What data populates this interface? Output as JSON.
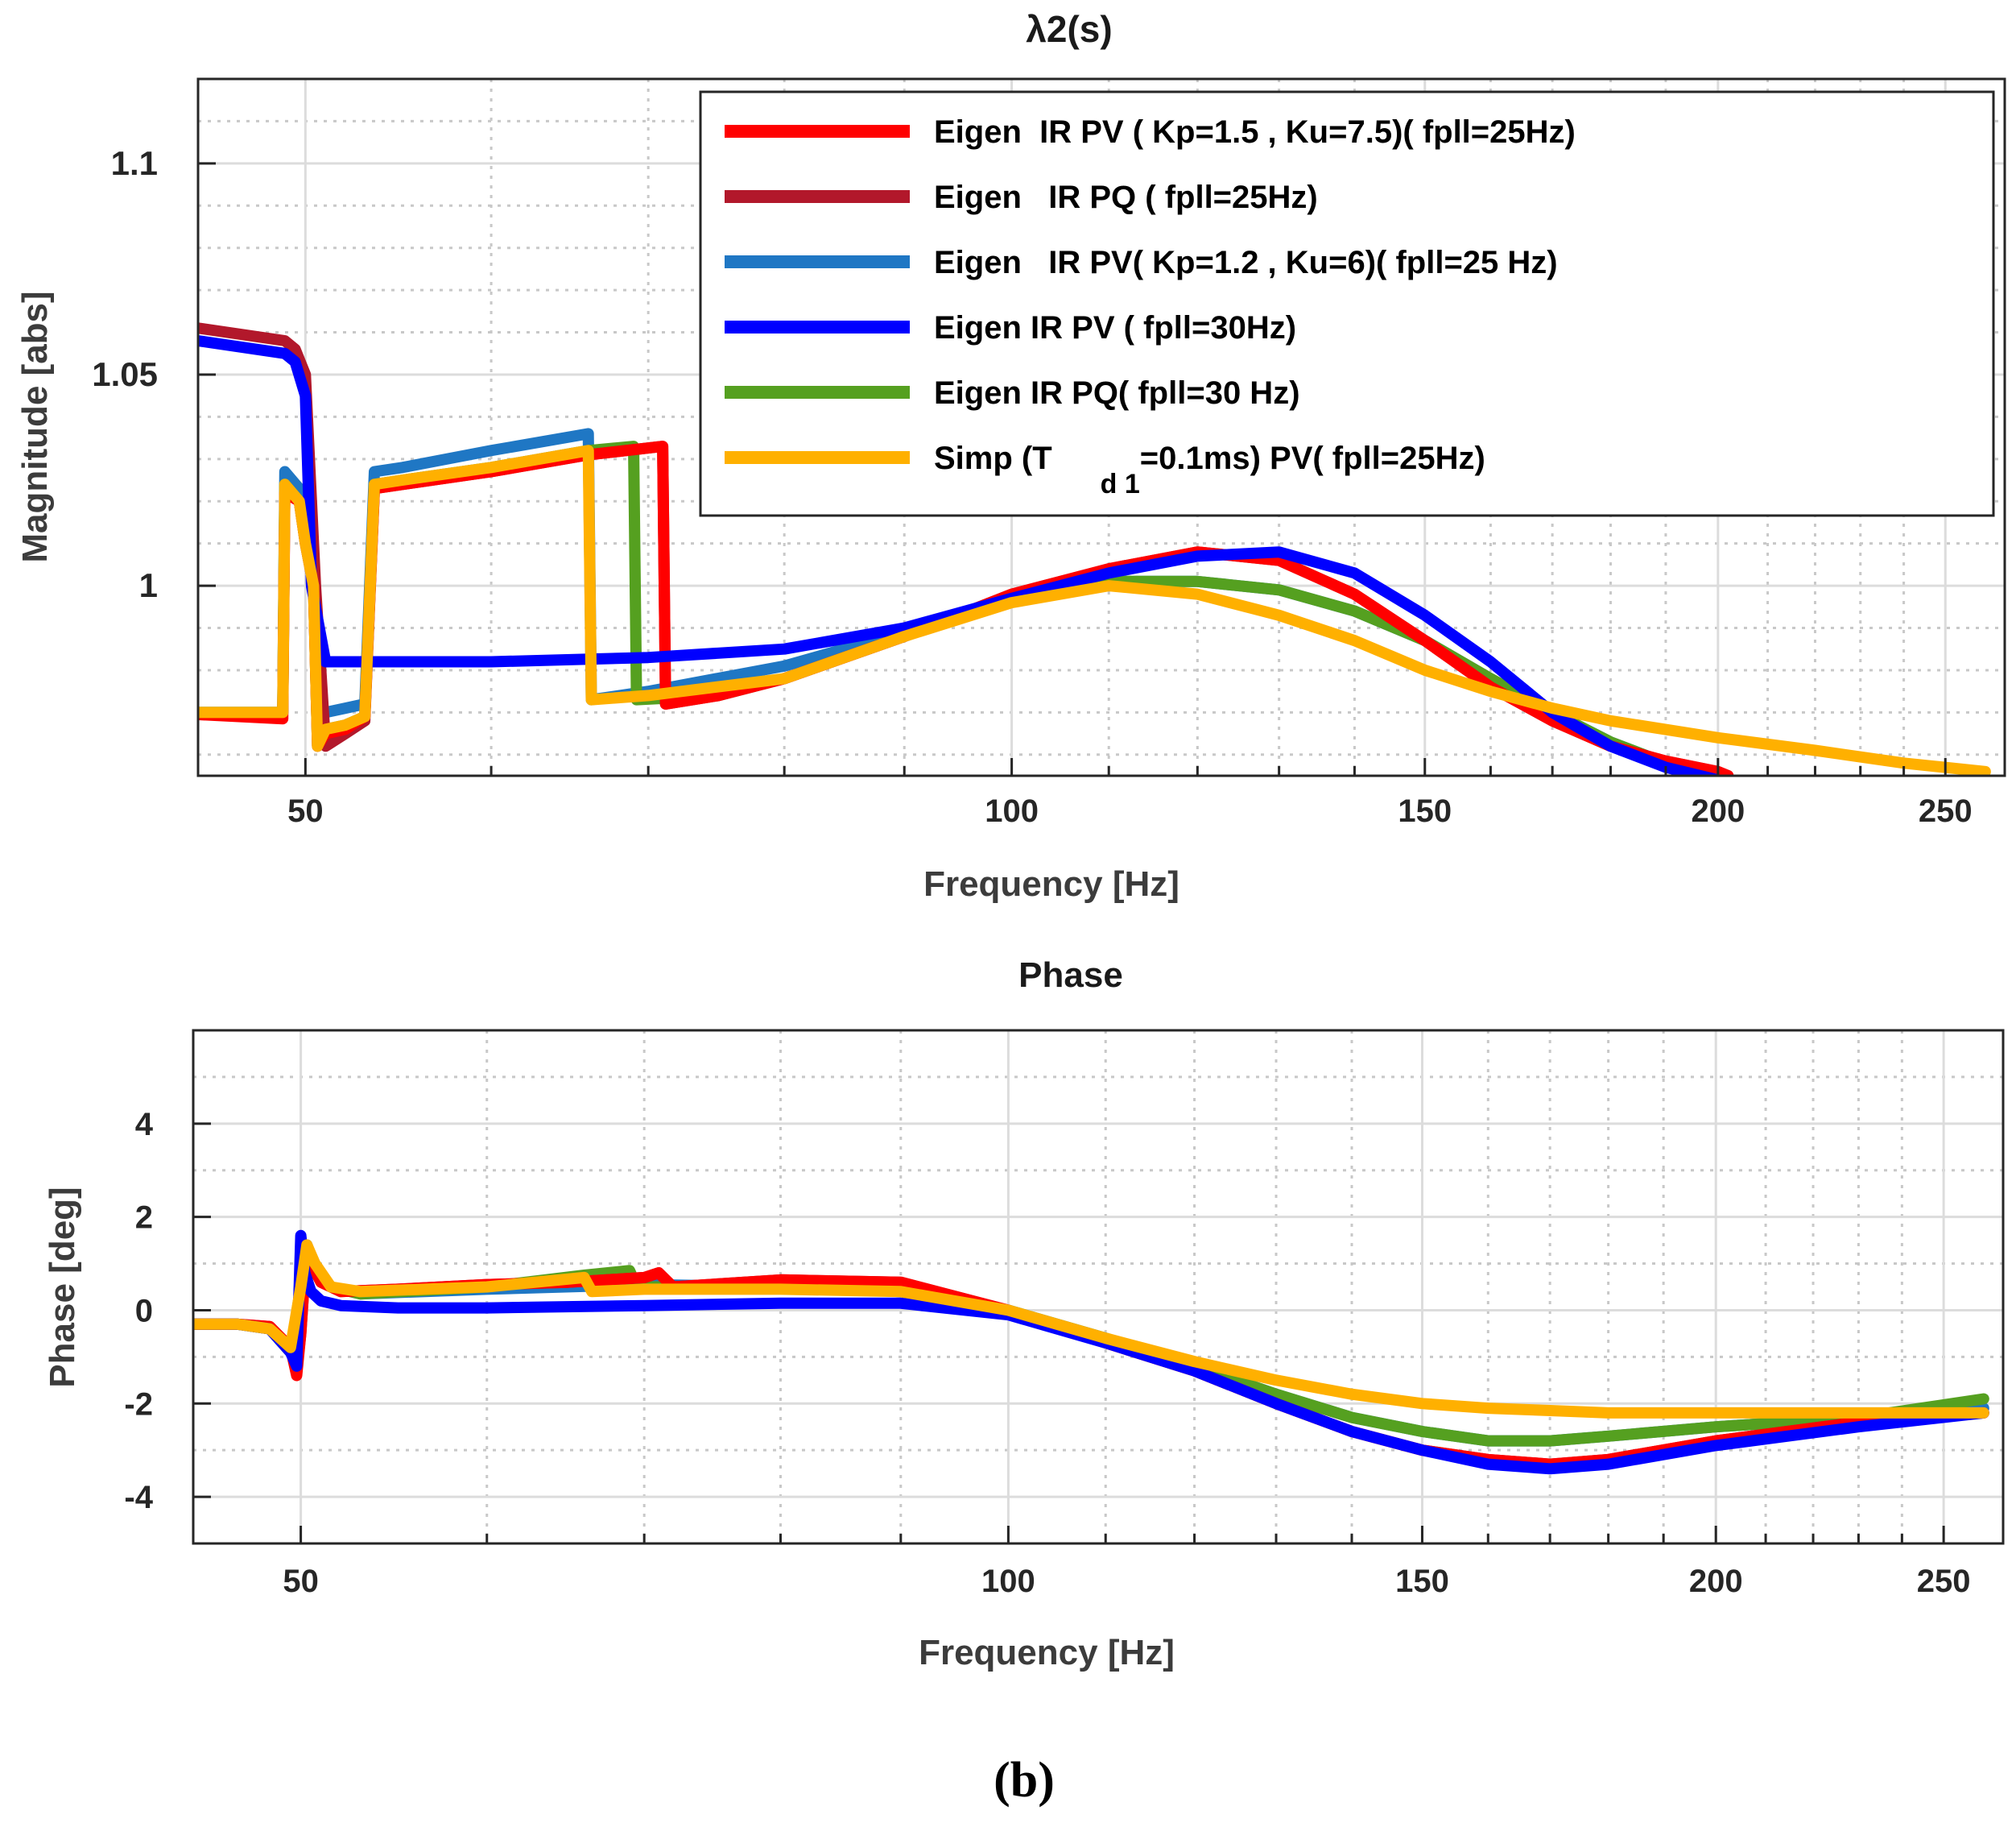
{
  "figure_caption": "(b)",
  "chart_data": [
    {
      "type": "line",
      "title": "λ2(s)",
      "xlabel": "Frequency [Hz]",
      "ylabel": "Magnitude [abs]",
      "xscale": "log",
      "xlim": [
        45,
        265
      ],
      "ylim": [
        0.955,
        1.12
      ],
      "xticks": [
        50,
        100,
        150,
        200,
        250
      ],
      "xtick_labels": [
        "50",
        "100",
        "150",
        "200",
        "250"
      ],
      "yticks": [
        1.0,
        1.05,
        1.1
      ],
      "ytick_labels": [
        "1",
        "1.05",
        "1.1"
      ],
      "grid": true,
      "legend_position": "top-right",
      "series": [
        {
          "name": "Eigen IR PV ( Kp=1.5 , Ku=7.5)( fpll=25Hz)",
          "color": "#ff0000",
          "x": [
            45,
            48.9,
            49,
            49.7,
            50,
            50.4,
            50.6,
            51,
            52,
            53,
            53.5,
            55,
            60,
            66,
            71,
            71.2,
            75,
            80,
            90,
            100,
            110,
            120,
            130,
            140,
            150,
            160,
            170,
            180,
            190,
            200,
            202
          ],
          "y": [
            0.9695,
            0.9685,
            1.022,
            1.02,
            1.01,
            1.0,
            0.962,
            0.965,
            0.966,
            0.969,
            1.023,
            1.024,
            1.027,
            1.031,
            1.033,
            0.972,
            0.974,
            0.978,
            0.988,
            0.998,
            1.004,
            1.008,
            1.006,
            0.998,
            0.987,
            0.976,
            0.968,
            0.962,
            0.9585,
            0.956,
            0.955
          ]
        },
        {
          "name": "Eigen IR PQ ( fpll=25Hz)",
          "color": "#b2182b",
          "x": [
            45,
            49,
            49.5,
            50,
            50.5,
            51,
            52,
            53,
            53.5,
            55,
            60,
            66,
            71,
            71.2,
            75,
            80,
            90,
            100,
            110,
            120,
            130,
            140,
            150,
            160,
            170,
            180,
            190,
            200,
            202
          ],
          "y": [
            1.061,
            1.058,
            1.056,
            1.05,
            1.0,
            0.962,
            0.965,
            0.968,
            1.023,
            1.024,
            1.027,
            1.031,
            1.033,
            0.972,
            0.974,
            0.978,
            0.988,
            0.998,
            1.004,
            1.008,
            1.006,
            0.998,
            0.987,
            0.976,
            0.968,
            0.962,
            0.9585,
            0.956,
            0.955
          ]
        },
        {
          "name": "Eigen IR PV( Kp=1.2 , Ku=6)( fpll=25 Hz)",
          "color": "#1f77c4",
          "x": [
            45,
            48.9,
            49,
            49.7,
            50,
            50.4,
            50.6,
            51,
            52,
            53,
            53.5,
            55,
            60,
            66,
            66.2,
            70,
            80,
            90,
            100,
            110,
            120,
            130,
            140,
            150,
            160,
            170,
            180,
            190,
            200
          ],
          "y": [
            0.97,
            0.97,
            1.027,
            1.023,
            1.012,
            1.0,
            0.972,
            0.97,
            0.971,
            0.972,
            1.027,
            1.028,
            1.032,
            1.036,
            0.973,
            0.975,
            0.981,
            0.989,
            0.997,
            1.001,
            1.001,
            0.999,
            0.994,
            0.987,
            0.978,
            0.97,
            0.963,
            0.958,
            0.955
          ]
        },
        {
          "name": "Eigen IR PV ( fpll=30Hz)",
          "color": "#0000ff",
          "x": [
            45,
            49,
            49.5,
            50,
            50.3,
            51,
            55,
            60,
            70,
            80,
            90,
            100,
            110,
            120,
            130,
            140,
            150,
            160,
            170,
            180,
            190,
            200
          ],
          "y": [
            1.058,
            1.055,
            1.053,
            1.045,
            1.0,
            0.982,
            0.982,
            0.982,
            0.983,
            0.985,
            0.99,
            0.997,
            1.003,
            1.007,
            1.008,
            1.003,
            0.993,
            0.982,
            0.97,
            0.962,
            0.957,
            0.954
          ]
        },
        {
          "name": "Eigen IR PQ( fpll=30 Hz)",
          "color": "#55a020",
          "x": [
            45,
            48.9,
            49,
            49.7,
            50,
            50.4,
            50.6,
            51,
            52,
            53,
            53.5,
            55,
            60,
            66,
            69,
            69.2,
            75,
            80,
            90,
            100,
            110,
            120,
            130,
            140,
            150,
            160,
            170,
            180,
            190,
            200
          ],
          "y": [
            0.97,
            0.97,
            1.024,
            1.02,
            1.01,
            1.0,
            0.962,
            0.966,
            0.967,
            0.969,
            1.024,
            1.025,
            1.028,
            1.032,
            1.033,
            0.973,
            0.974,
            0.978,
            0.988,
            0.997,
            1.001,
            1.001,
            0.999,
            0.994,
            0.987,
            0.978,
            0.97,
            0.963,
            0.958,
            0.955
          ]
        },
        {
          "name": "Simp (T d 1=0.1ms) PV( fpll=25Hz)",
          "color": "#ffb000",
          "x": [
            45,
            48.9,
            49,
            49.7,
            50,
            50.4,
            50.6,
            51,
            52,
            53,
            53.5,
            55,
            60,
            66,
            66.2,
            70,
            80,
            90,
            100,
            110,
            120,
            130,
            140,
            150,
            160,
            170,
            180,
            200,
            220,
            240,
            260
          ],
          "y": [
            0.97,
            0.97,
            1.024,
            1.02,
            1.01,
            1.0,
            0.962,
            0.966,
            0.967,
            0.969,
            1.024,
            1.025,
            1.028,
            1.032,
            0.973,
            0.974,
            0.978,
            0.988,
            0.996,
            1.0,
            0.998,
            0.993,
            0.987,
            0.98,
            0.975,
            0.971,
            0.968,
            0.964,
            0.961,
            0.958,
            0.956
          ]
        }
      ],
      "legend_entries": [
        {
          "label": "Eigen  IR PV ( Kp=1.5 , Ku=7.5)( fpll=25Hz)",
          "color": "#ff0000"
        },
        {
          "label": "Eigen   IR PQ ( fpll=25Hz)",
          "color": "#b2182b"
        },
        {
          "label": "Eigen   IR PV( Kp=1.2 , Ku=6)( fpll=25 Hz)",
          "color": "#1f77c4"
        },
        {
          "label": "Eigen IR PV ( fpll=30Hz)",
          "color": "#0000ff"
        },
        {
          "label": "Eigen IR PQ( fpll=30 Hz)",
          "color": "#55a020"
        },
        {
          "label": "Simp (T",
          "subscript": "d 1",
          "suffix": "=0.1ms) PV( fpll=25Hz)",
          "color": "#ffb000"
        }
      ]
    },
    {
      "type": "line",
      "title": "Phase",
      "xlabel": "Frequency [Hz]",
      "ylabel": "Phase [deg]",
      "xscale": "log",
      "xlim": [
        45,
        265
      ],
      "ylim": [
        -5,
        6
      ],
      "xticks": [
        50,
        100,
        150,
        200,
        250
      ],
      "xtick_labels": [
        "50",
        "100",
        "150",
        "200",
        "250"
      ],
      "yticks": [
        -4,
        -2,
        0,
        2,
        4
      ],
      "ytick_labels": [
        "-4",
        "-2",
        "0",
        "2",
        "4"
      ],
      "grid": true,
      "series": [
        {
          "name": "Eigen IR PV ( Kp=1.5 , Ku=7.5)( fpll=25Hz)",
          "color": "#ff0000",
          "x": [
            45,
            47,
            48.5,
            49.5,
            49.8,
            50,
            50.2,
            50.5,
            51,
            52,
            55,
            60,
            65,
            70,
            71,
            72,
            80,
            90,
            100,
            110,
            120,
            130,
            140,
            150,
            160,
            170,
            180,
            200,
            230,
            260
          ],
          "y": [
            -0.3,
            -0.3,
            -0.35,
            -0.8,
            -1.4,
            -0.5,
            0.8,
            1.0,
            0.6,
            0.4,
            0.45,
            0.55,
            0.6,
            0.7,
            0.8,
            0.5,
            0.65,
            0.6,
            0.0,
            -0.7,
            -1.3,
            -2.0,
            -2.6,
            -3.0,
            -3.2,
            -3.3,
            -3.2,
            -2.8,
            -2.4,
            -2.2
          ]
        },
        {
          "name": "Eigen IR PQ ( fpll=25Hz)",
          "color": "#b2182b",
          "x": [
            45,
            47,
            48.5,
            49.5,
            49.8,
            50,
            50.2,
            50.5,
            51,
            52,
            55,
            60,
            65,
            70,
            71,
            72,
            80,
            90,
            100,
            110,
            120,
            130,
            140,
            150,
            160,
            170,
            180,
            200,
            230,
            260
          ],
          "y": [
            -0.3,
            -0.3,
            -0.35,
            -0.8,
            -1.3,
            -0.5,
            0.8,
            1.0,
            0.6,
            0.4,
            0.45,
            0.55,
            0.6,
            0.7,
            0.8,
            0.5,
            0.65,
            0.6,
            0.0,
            -0.7,
            -1.3,
            -2.0,
            -2.6,
            -3.0,
            -3.2,
            -3.3,
            -3.2,
            -2.8,
            -2.4,
            -2.2
          ]
        },
        {
          "name": "Eigen IR PV( Kp=1.2 , Ku=6)( fpll=25 Hz)",
          "color": "#1f77c4",
          "x": [
            45,
            47,
            48.5,
            49.5,
            50,
            50.3,
            50.7,
            51.5,
            53,
            60,
            70,
            80,
            90,
            100,
            110,
            120,
            130,
            140,
            150,
            160,
            170,
            180,
            200,
            230,
            260
          ],
          "y": [
            -0.3,
            -0.3,
            -0.4,
            -0.9,
            0.5,
            1.4,
            0.9,
            0.5,
            0.35,
            0.45,
            0.55,
            0.5,
            0.4,
            0.0,
            -0.6,
            -1.2,
            -1.8,
            -2.3,
            -2.6,
            -2.8,
            -2.8,
            -2.7,
            -2.5,
            -2.3,
            -2.1
          ]
        },
        {
          "name": "Eigen IR PV ( fpll=30Hz)",
          "color": "#0000ff",
          "x": [
            45,
            47,
            48.5,
            49.5,
            49.8,
            50,
            50.2,
            50.5,
            51,
            52,
            55,
            60,
            70,
            80,
            90,
            100,
            110,
            120,
            130,
            140,
            150,
            160,
            170,
            180,
            200,
            230,
            260
          ],
          "y": [
            -0.3,
            -0.3,
            -0.4,
            -0.9,
            -1.2,
            1.6,
            0.8,
            0.4,
            0.2,
            0.1,
            0.05,
            0.05,
            0.1,
            0.15,
            0.15,
            -0.1,
            -0.7,
            -1.3,
            -2.0,
            -2.6,
            -3.0,
            -3.3,
            -3.4,
            -3.3,
            -2.9,
            -2.5,
            -2.2
          ]
        },
        {
          "name": "Eigen IR PQ( fpll=30 Hz)",
          "color": "#55a020",
          "x": [
            45,
            47,
            48.5,
            49.5,
            50,
            50.3,
            50.7,
            51.5,
            53,
            60,
            66,
            69,
            69.5,
            70,
            80,
            90,
            100,
            110,
            120,
            130,
            140,
            150,
            160,
            170,
            180,
            200,
            230,
            260
          ],
          "y": [
            -0.3,
            -0.3,
            -0.4,
            -0.9,
            0.5,
            1.3,
            0.9,
            0.5,
            0.35,
            0.5,
            0.75,
            0.85,
            0.5,
            0.5,
            0.5,
            0.4,
            0.0,
            -0.6,
            -1.2,
            -1.8,
            -2.3,
            -2.6,
            -2.8,
            -2.8,
            -2.7,
            -2.5,
            -2.3,
            -1.9
          ]
        },
        {
          "name": "Simp (T d 1=0.1ms) PV( fpll=25Hz)",
          "color": "#ffb000",
          "x": [
            45,
            47,
            48.5,
            49.5,
            50,
            50.3,
            50.7,
            51.5,
            53,
            60,
            66,
            66.5,
            70,
            80,
            90,
            100,
            110,
            120,
            130,
            140,
            150,
            160,
            170,
            180,
            200,
            230,
            260
          ],
          "y": [
            -0.3,
            -0.3,
            -0.4,
            -0.8,
            0.5,
            1.4,
            1.0,
            0.5,
            0.4,
            0.5,
            0.7,
            0.4,
            0.45,
            0.45,
            0.4,
            0.0,
            -0.6,
            -1.1,
            -1.5,
            -1.8,
            -2.0,
            -2.1,
            -2.15,
            -2.2,
            -2.2,
            -2.2,
            -2.2
          ]
        }
      ]
    }
  ]
}
